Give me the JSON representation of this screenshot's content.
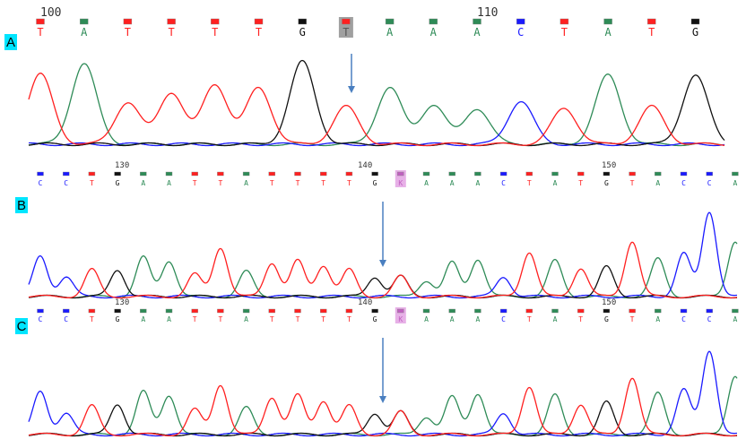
{
  "colors": {
    "A": "#2e8b57",
    "C": "#1a1aff",
    "G": "#111111",
    "T": "#ff2020",
    "K": "#c060c0",
    "arrow": "#4a7fc0",
    "label_bg": "#00e5ff"
  },
  "panels": [
    {
      "label": "A",
      "positions": {
        "first": 100,
        "step": 1,
        "labels": [
          "100",
          "110"
        ]
      },
      "bases": [
        "T",
        "A",
        "T",
        "T",
        "T",
        "T",
        "G",
        "T",
        "A",
        "A",
        "A",
        "C",
        "T",
        "A",
        "T",
        "G"
      ],
      "highlight_index": 7
    },
    {
      "label": "B",
      "positions": {
        "labels": [
          "130",
          "140",
          "150"
        ]
      },
      "bases": [
        "C",
        "C",
        "T",
        "G",
        "A",
        "A",
        "T",
        "T",
        "A",
        "T",
        "T",
        "T",
        "T",
        "G",
        "K",
        "A",
        "A",
        "A",
        "C",
        "T",
        "A",
        "T",
        "G",
        "T",
        "A",
        "C",
        "C",
        "A"
      ],
      "highlight_index": 14
    },
    {
      "label": "C",
      "positions": {
        "labels": [
          "130",
          "140",
          "150"
        ]
      },
      "bases": [
        "C",
        "C",
        "T",
        "G",
        "A",
        "A",
        "T",
        "T",
        "A",
        "T",
        "T",
        "T",
        "T",
        "G",
        "K",
        "A",
        "A",
        "A",
        "C",
        "T",
        "A",
        "T",
        "G",
        "T",
        "A",
        "C",
        "C",
        "A"
      ],
      "highlight_index": 14
    }
  ]
}
